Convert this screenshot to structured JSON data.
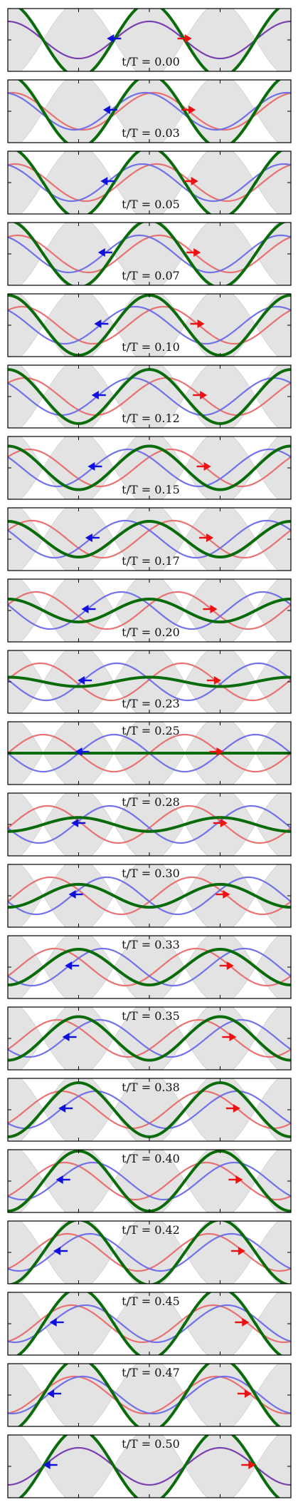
{
  "chart_data": {
    "type": "line",
    "title": "",
    "description_of_series": [
      "right-moving wave",
      "left-moving wave",
      "superposition (standing wave)",
      "standing-wave envelope"
    ],
    "time_label_prefix": "t/T = ",
    "time_fractions": [
      "0.00",
      "0.03",
      "0.05",
      "0.07",
      "0.10",
      "0.12",
      "0.15",
      "0.17",
      "0.20",
      "0.23",
      "0.25",
      "0.28",
      "0.30",
      "0.33",
      "0.35",
      "0.38",
      "0.40",
      "0.42",
      "0.45",
      "0.47",
      "0.50"
    ],
    "wavelengths_shown": 2,
    "colors": {
      "right_wave": "#e86a6a",
      "left_wave": "#6a6ae8",
      "sum_wave": "#0a6b0a",
      "envelope": "#e3e3e3",
      "envelope_edge": "#cfcfcf",
      "arrow_right": "#ee1111",
      "arrow_left": "#1111dd"
    }
  }
}
